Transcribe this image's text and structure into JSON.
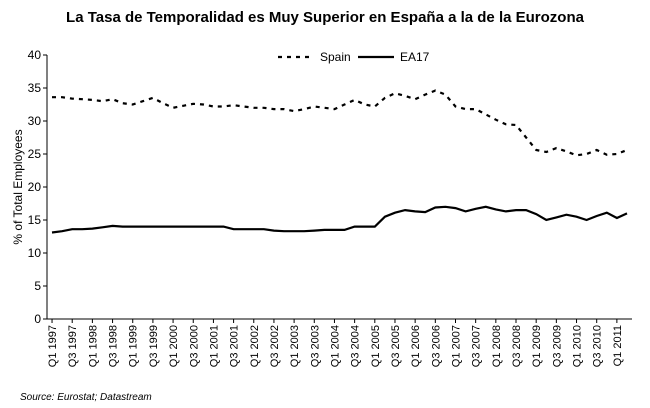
{
  "chart_data": {
    "type": "line",
    "title": "La Tasa de Temporalidad es Muy Superior en España a la de la Eurozona",
    "y_label": "% of Total Employees",
    "source": "Source: Eurostat; Datastream",
    "categories": [
      "Q1 1997",
      null,
      "Q3 1997",
      null,
      "Q1 1998",
      null,
      "Q3 1998",
      null,
      "Q1 1999",
      null,
      "Q3 1999",
      null,
      "Q1 2000",
      null,
      "Q3 2000",
      null,
      "Q1 2001",
      null,
      "Q3 2001",
      null,
      "Q1 2002",
      null,
      "Q3 2002",
      null,
      "Q1 2003",
      null,
      "Q3 2003",
      null,
      "Q1 2004",
      null,
      "Q3 2004",
      null,
      "Q1 2005",
      null,
      "Q3 2005",
      null,
      "Q1 2006",
      null,
      "Q3 2006",
      null,
      "Q1 2007",
      null,
      "Q3 2007",
      null,
      "Q1 2008",
      null,
      "Q3 2008",
      null,
      "Q1 2009",
      null,
      "Q3 2009",
      null,
      "Q1 2010",
      null,
      "Q3 2010",
      null,
      "Q1 2011",
      null
    ],
    "series": [
      {
        "name": "Spain",
        "color": "#000000",
        "dash": true,
        "values": [
          33.6,
          33.6,
          33.4,
          33.3,
          33.2,
          33.0,
          33.3,
          32.7,
          32.5,
          33.0,
          33.5,
          32.7,
          32.0,
          32.3,
          32.6,
          32.5,
          32.2,
          32.2,
          32.4,
          32.2,
          32.0,
          32.0,
          31.8,
          31.8,
          31.5,
          31.8,
          32.2,
          32.0,
          31.8,
          32.5,
          33.2,
          32.5,
          32.2,
          33.5,
          34.2,
          33.8,
          33.3,
          34.0,
          34.6,
          34.0,
          32.2,
          31.8,
          31.8,
          31.0,
          30.2,
          29.5,
          29.4,
          27.5,
          25.6,
          25.3,
          25.9,
          25.4,
          24.8,
          25.0,
          25.6,
          24.9,
          25.0,
          25.6
        ]
      },
      {
        "name": "EA17",
        "color": "#000000",
        "dash": false,
        "values": [
          13.1,
          13.3,
          13.6,
          13.6,
          13.7,
          13.9,
          14.1,
          14.0,
          14.0,
          14.0,
          14.0,
          14.0,
          14.0,
          14.0,
          14.0,
          14.0,
          14.0,
          14.0,
          13.6,
          13.6,
          13.6,
          13.6,
          13.4,
          13.3,
          13.3,
          13.3,
          13.4,
          13.5,
          13.5,
          13.5,
          14.0,
          14.0,
          14.0,
          15.5,
          16.1,
          16.5,
          16.3,
          16.2,
          16.9,
          17.0,
          16.8,
          16.3,
          16.7,
          17.0,
          16.6,
          16.3,
          16.5,
          16.5,
          15.9,
          15.0,
          15.4,
          15.8,
          15.5,
          15.0,
          15.6,
          16.1,
          15.3,
          16.0
        ]
      }
    ],
    "ylim": [
      0,
      40
    ],
    "yticks": [
      0,
      5,
      10,
      15,
      20,
      25,
      30,
      35,
      40
    ],
    "grid": false,
    "legend": "top"
  }
}
